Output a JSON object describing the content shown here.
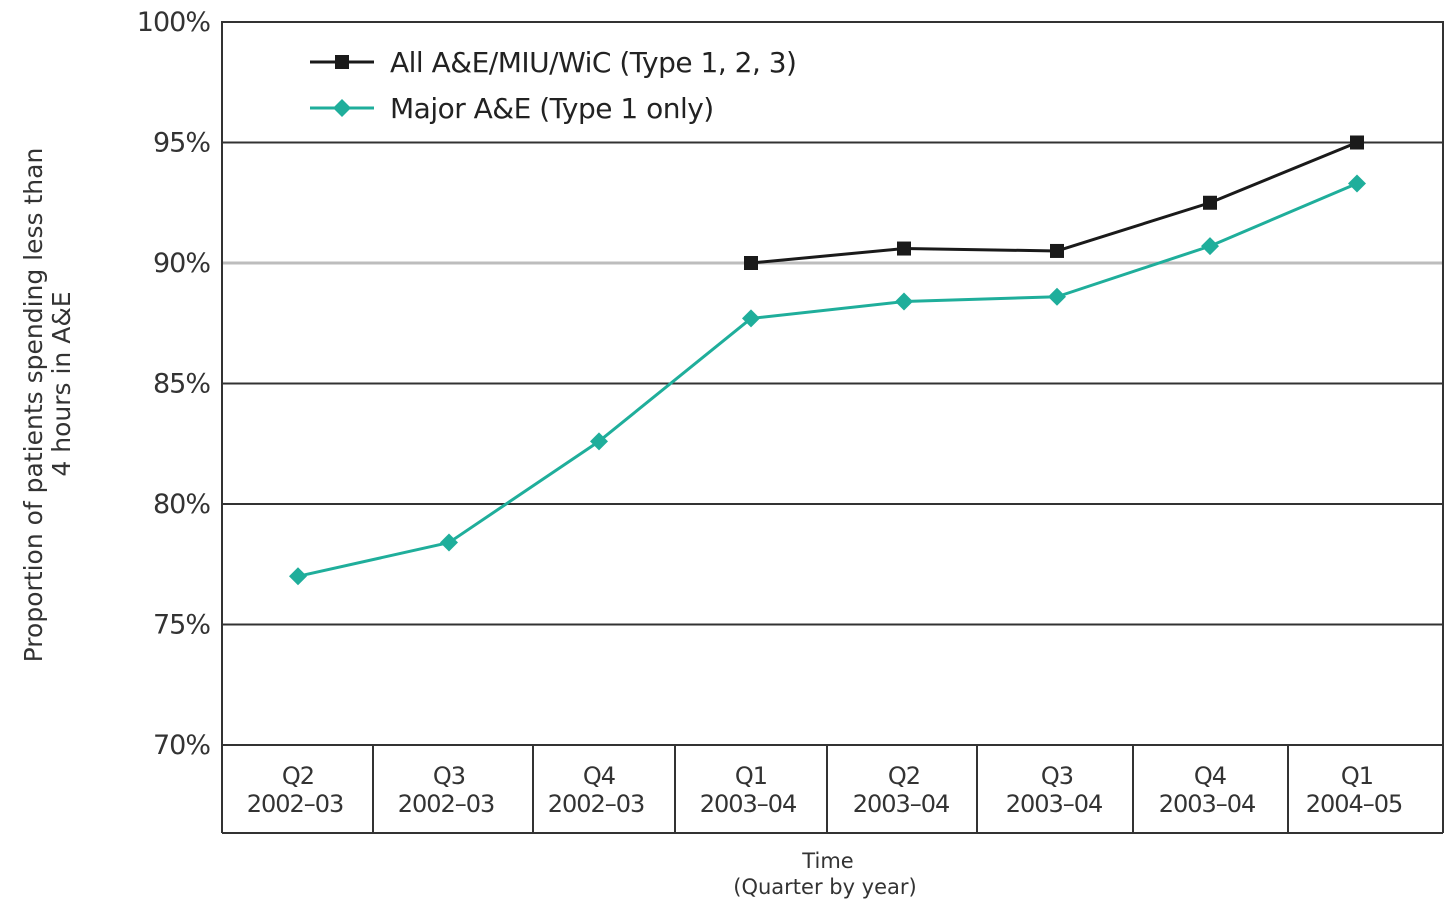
{
  "chart_data": {
    "type": "line",
    "xlabel": [
      "Time",
      "(Quarter by year)"
    ],
    "ylabel": [
      "Proportion of patients spending less than",
      "4 hours in A&E"
    ],
    "ylim": [
      70,
      100
    ],
    "yticks": [
      "70%",
      "75%",
      "80%",
      "85%",
      "90%",
      "95%",
      "100%"
    ],
    "grid": true,
    "legend_position": "top-left",
    "categories": [
      [
        "Q2",
        "2002–03"
      ],
      [
        "Q3",
        "2002–03"
      ],
      [
        "Q4",
        "2002–03"
      ],
      [
        "Q1",
        "2003–04"
      ],
      [
        "Q2",
        "2003–04"
      ],
      [
        "Q3",
        "2003–04"
      ],
      [
        "Q4",
        "2003–04"
      ],
      [
        "Q1",
        "2004–05"
      ]
    ],
    "series": [
      {
        "name": "All A&E/MIU/WiC (Type 1, 2, 3)",
        "color": "#1a1a1a",
        "marker": "square",
        "values": [
          null,
          null,
          null,
          90.0,
          90.6,
          90.5,
          92.5,
          95.0
        ]
      },
      {
        "name": "Major A&E (Type 1 only)",
        "color": "#1fae9b",
        "marker": "diamond",
        "values": [
          77.0,
          78.4,
          82.6,
          87.7,
          88.4,
          88.6,
          90.7,
          93.3
        ]
      }
    ]
  }
}
